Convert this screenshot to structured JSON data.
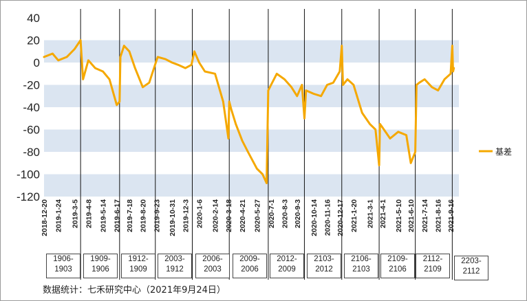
{
  "chart_data": {
    "type": "line",
    "ylim": [
      -120,
      40
    ],
    "y_ticks": [
      40,
      20,
      0,
      -20,
      -40,
      -60,
      -80,
      -100,
      -120
    ],
    "x_tick_labels": [
      "2018-12-20",
      "2019-1-24",
      "2019-3-5",
      "2019-4-8",
      "2019-5-14",
      "2019-6-17",
      "2019-7-18",
      "2019-8-20",
      "2019-9-23",
      "2019-10-31",
      "2019-12-3",
      "2020-1-6",
      "2020-2-14",
      "2020-3-18",
      "2020-4-21",
      "2020-5-27",
      "2020-7-1",
      "2020-8-3",
      "2020-9-3",
      "2020-10-14",
      "2020-11-16",
      "2020-12-17",
      "2021-1-20",
      "2021-3-1",
      "2021-4-1",
      "2021-5-10",
      "2021-6-10",
      "2021-7-14",
      "2021-8-16",
      "2021-9-16"
    ],
    "grid": "alternating horizontal bands",
    "legend_position": "right",
    "series": [
      {
        "name": "基差",
        "color": "#f5a800",
        "x": [
          "2018-12-20",
          "2019-1-10",
          "2019-1-24",
          "2019-2-14",
          "2019-3-5",
          "2019-3-20",
          "2019-3-26",
          "2019-4-8",
          "2019-4-25",
          "2019-5-14",
          "2019-5-30",
          "2019-6-17",
          "2019-6-24",
          "2019-6-26",
          "2019-7-5",
          "2019-7-18",
          "2019-8-1",
          "2019-8-20",
          "2019-9-5",
          "2019-9-23",
          "2019-9-26",
          "2019-10-15",
          "2019-10-31",
          "2019-11-15",
          "2019-12-3",
          "2019-12-18",
          "2019-12-25",
          "2020-1-6",
          "2020-1-20",
          "2020-2-14",
          "2020-3-5",
          "2020-3-18",
          "2020-3-20",
          "2020-3-25",
          "2020-4-5",
          "2020-4-21",
          "2020-5-5",
          "2020-5-27",
          "2020-6-10",
          "2020-6-20",
          "2020-6-24",
          "2020-7-1",
          "2020-7-15",
          "2020-8-3",
          "2020-8-20",
          "2020-9-3",
          "2020-9-15",
          "2020-9-21",
          "2020-9-25",
          "2020-10-14",
          "2020-11-1",
          "2020-11-16",
          "2020-12-1",
          "2020-12-17",
          "2020-12-22",
          "2020-12-25",
          "2021-1-5",
          "2021-1-20",
          "2021-2-10",
          "2021-3-1",
          "2021-3-15",
          "2021-3-24",
          "2021-3-26",
          "2021-4-1",
          "2021-4-20",
          "2021-5-10",
          "2021-5-30",
          "2021-6-10",
          "2021-6-21",
          "2021-6-24",
          "2021-7-1",
          "2021-7-14",
          "2021-8-1",
          "2021-8-16",
          "2021-9-1",
          "2021-9-16",
          "2021-9-20",
          "2021-9-22",
          "2021-9-24"
        ],
        "values": [
          5,
          8,
          2,
          5,
          12,
          20,
          -15,
          2,
          -5,
          -8,
          -15,
          -38,
          -35,
          5,
          15,
          10,
          -5,
          -22,
          -18,
          2,
          5,
          3,
          0,
          -2,
          -5,
          -2,
          10,
          0,
          -8,
          -10,
          -35,
          -68,
          -35,
          -42,
          -55,
          -70,
          -80,
          -95,
          -100,
          -108,
          -25,
          -20,
          -10,
          -15,
          -22,
          -30,
          -20,
          -50,
          -25,
          -28,
          -30,
          -20,
          -18,
          -8,
          15,
          -20,
          -15,
          -20,
          -45,
          -55,
          -60,
          -92,
          -55,
          -58,
          -68,
          -62,
          -65,
          -90,
          -80,
          -20,
          -18,
          -15,
          -22,
          -25,
          -15,
          -10,
          15,
          -8,
          -5
        ]
      }
    ],
    "contract_windows": [
      "1906-1903",
      "1909-1906",
      "1912-1909",
      "2003-1912",
      "2006-2003",
      "2009-2006",
      "2012-2009",
      "2103-2012",
      "2106-2103",
      "2109-2106",
      "2112-2109",
      "2203-2112"
    ]
  },
  "source_note": "数据统计：七禾研究中心（2021年9月24日）"
}
